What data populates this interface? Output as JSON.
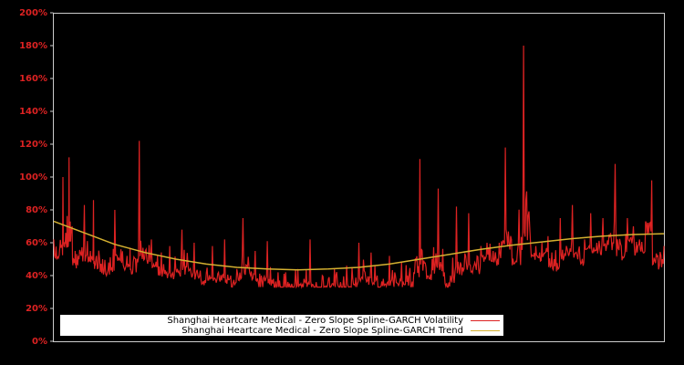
{
  "chart_data": {
    "type": "line",
    "title": "",
    "xlabel": "",
    "ylabel": "",
    "ylim": [
      0,
      200
    ],
    "yticks": [
      "0%",
      "20%",
      "40%",
      "60%",
      "80%",
      "100%",
      "120%",
      "140%",
      "160%",
      "180%",
      "200%"
    ],
    "grid": false,
    "legend_position": "lower left inside plot",
    "background": "#000000",
    "axis_color": "#cccccc",
    "tick_label_color": "#dd2222",
    "series": [
      {
        "name": "Shanghai Heartcare Medical - Zero Slope Spline-GARCH Volatility",
        "color": "#dd2222",
        "x_fraction": [
          0.0,
          0.01,
          0.015,
          0.02,
          0.025,
          0.03,
          0.035,
          0.04,
          0.05,
          0.06,
          0.065,
          0.07,
          0.08,
          0.09,
          0.1,
          0.11,
          0.12,
          0.125,
          0.13,
          0.14,
          0.15,
          0.16,
          0.17,
          0.18,
          0.19,
          0.2,
          0.21,
          0.22,
          0.23,
          0.24,
          0.25,
          0.26,
          0.27,
          0.28,
          0.29,
          0.3,
          0.31,
          0.32,
          0.33,
          0.34,
          0.35,
          0.36,
          0.37,
          0.38,
          0.39,
          0.4,
          0.41,
          0.42,
          0.43,
          0.44,
          0.45,
          0.46,
          0.47,
          0.48,
          0.49,
          0.5,
          0.51,
          0.52,
          0.53,
          0.54,
          0.55,
          0.56,
          0.57,
          0.58,
          0.59,
          0.6,
          0.61,
          0.62,
          0.63,
          0.64,
          0.65,
          0.66,
          0.67,
          0.68,
          0.69,
          0.7,
          0.71,
          0.72,
          0.73,
          0.74,
          0.75,
          0.76,
          0.77,
          0.78,
          0.79,
          0.8,
          0.81,
          0.82,
          0.83,
          0.84,
          0.85,
          0.86,
          0.87,
          0.88,
          0.89,
          0.9,
          0.91,
          0.92,
          0.93,
          0.94,
          0.95,
          0.96,
          0.97,
          0.98,
          0.99,
          1.0
        ],
        "values": [
          62,
          58,
          100,
          65,
          112,
          70,
          55,
          52,
          83,
          55,
          86,
          52,
          50,
          48,
          80,
          56,
          52,
          57,
          48,
          122,
          55,
          62,
          52,
          47,
          58,
          44,
          68,
          46,
          60,
          43,
          42,
          58,
          42,
          62,
          40,
          44,
          75,
          45,
          55,
          40,
          61,
          38,
          37,
          42,
          35,
          44,
          38,
          62,
          36,
          40,
          38,
          44,
          36,
          46,
          38,
          60,
          42,
          54,
          40,
          38,
          52,
          40,
          48,
          40,
          42,
          111,
          45,
          50,
          93,
          42,
          40,
          82,
          45,
          78,
          48,
          58,
          60,
          55,
          60,
          118,
          62,
          55,
          180,
          70,
          58,
          60,
          64,
          50,
          75,
          58,
          83,
          55,
          62,
          78,
          60,
          75,
          65,
          108,
          58,
          75,
          70,
          62,
          73,
          98,
          52,
          58
        ],
        "units": "%"
      },
      {
        "name": "Shanghai Heartcare Medical - Zero Slope Spline-GARCH Trend",
        "color": "#d4b030",
        "x_fraction": [
          0.0,
          0.05,
          0.1,
          0.15,
          0.2,
          0.25,
          0.3,
          0.35,
          0.4,
          0.45,
          0.5,
          0.55,
          0.6,
          0.65,
          0.7,
          0.75,
          0.8,
          0.85,
          0.9,
          0.95,
          1.0
        ],
        "values": [
          73,
          66,
          59,
          54,
          50,
          47,
          45,
          44,
          43.5,
          44,
          45,
          47,
          50,
          53,
          56,
          58.5,
          60.5,
          62.5,
          64,
          65,
          65.5
        ],
        "units": "%"
      }
    ]
  },
  "axis": {
    "yticks": [
      "0%",
      "20%",
      "40%",
      "60%",
      "80%",
      "100%",
      "120%",
      "140%",
      "160%",
      "180%",
      "200%"
    ]
  },
  "legend": {
    "items": [
      {
        "label": "Shanghai Heartcare Medical - Zero Slope Spline-GARCH Volatility",
        "color": "#dd2222"
      },
      {
        "label": "Shanghai Heartcare Medical - Zero Slope Spline-GARCH Trend",
        "color": "#d4b030"
      }
    ]
  }
}
